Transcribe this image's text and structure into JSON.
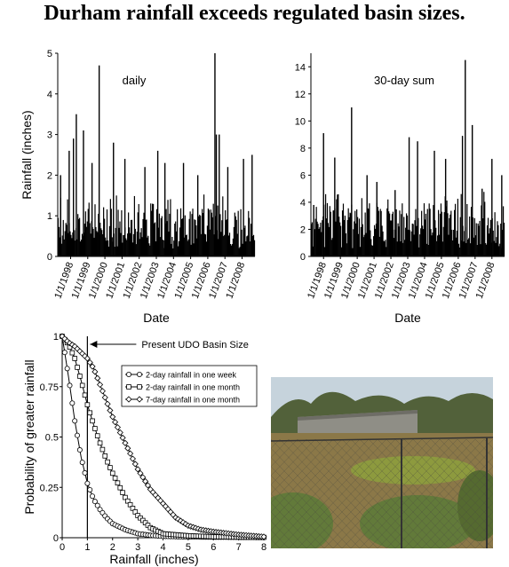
{
  "title": "Durham rainfall exceeds regulated basin sizes.",
  "chart_data": [
    {
      "type": "bar",
      "annotation": "daily",
      "xlabel": "Date",
      "ylabel": "Rainfall (inches)",
      "ylim": [
        0,
        5
      ],
      "yticks": [
        0,
        1,
        2,
        3,
        4,
        5
      ],
      "xtick_labels": [
        "1/1/1998",
        "1/1/1999",
        "1/1/2000",
        "1/1/2001",
        "1/1/2002",
        "1/1/2003",
        "1/1/2004",
        "1/1/2005",
        "1/1/2006",
        "1/1/2007",
        "1/1/2008"
      ],
      "x_range": [
        "1997-04-01",
        "2008-10-01"
      ],
      "peaks": [
        {
          "date": "1997-06",
          "value": 2.0
        },
        {
          "date": "1997-12",
          "value": 2.6
        },
        {
          "date": "1998-03",
          "value": 2.9
        },
        {
          "date": "1998-05",
          "value": 3.5
        },
        {
          "date": "1998-10",
          "value": 3.1
        },
        {
          "date": "1999-04",
          "value": 2.3
        },
        {
          "date": "1999-09",
          "value": 4.7
        },
        {
          "date": "2000-07",
          "value": 2.8
        },
        {
          "date": "2001-03",
          "value": 2.4
        },
        {
          "date": "2002-05",
          "value": 2.2
        },
        {
          "date": "2003-02",
          "value": 2.6
        },
        {
          "date": "2003-07",
          "value": 2.3
        },
        {
          "date": "2004-08",
          "value": 2.3
        },
        {
          "date": "2005-06",
          "value": 2.0
        },
        {
          "date": "2006-06",
          "value": 5.0
        },
        {
          "date": "2006-07",
          "value": 3.0
        },
        {
          "date": "2006-09",
          "value": 3.0
        },
        {
          "date": "2007-03",
          "value": 2.2
        },
        {
          "date": "2008-02",
          "value": 2.4
        },
        {
          "date": "2008-08",
          "value": 2.5
        }
      ],
      "baseline_max": 1.3,
      "series_color": "#000000"
    },
    {
      "type": "bar",
      "annotation": "30-day sum",
      "xlabel": "Date",
      "ylabel": "",
      "ylim": [
        0,
        15
      ],
      "yticks": [
        0,
        2,
        4,
        6,
        8,
        10,
        12,
        14
      ],
      "xtick_labels": [
        "1/1/1998",
        "1/1/1999",
        "1/1/2000",
        "1/1/2001",
        "1/1/2002",
        "1/1/2003",
        "1/1/2004",
        "1/1/2005",
        "1/1/2006",
        "1/1/2007",
        "1/1/2008"
      ],
      "x_range": [
        "1997-04-01",
        "2008-10-01"
      ],
      "peaks": [
        {
          "date": "1997-06",
          "value": 3.8
        },
        {
          "date": "1998-01",
          "value": 9.1
        },
        {
          "date": "1998-09",
          "value": 7.3
        },
        {
          "date": "1999-09",
          "value": 11.0
        },
        {
          "date": "2000-08",
          "value": 6.0
        },
        {
          "date": "2001-03",
          "value": 5.5
        },
        {
          "date": "2002-04",
          "value": 4.9
        },
        {
          "date": "2003-02",
          "value": 8.8
        },
        {
          "date": "2003-08",
          "value": 8.5
        },
        {
          "date": "2004-08",
          "value": 7.8
        },
        {
          "date": "2005-04",
          "value": 7.2
        },
        {
          "date": "2006-04",
          "value": 8.9
        },
        {
          "date": "2006-06",
          "value": 14.5
        },
        {
          "date": "2006-11",
          "value": 9.7
        },
        {
          "date": "2007-06",
          "value": 5.0
        },
        {
          "date": "2008-01",
          "value": 7.2
        },
        {
          "date": "2008-08",
          "value": 6.0
        }
      ],
      "baseline_max": 4.0,
      "series_color": "#000000"
    },
    {
      "type": "line",
      "xlabel": "Rainfall (inches)",
      "ylabel": "Probability of greater rainfall",
      "xlim": [
        0,
        8
      ],
      "ylim": [
        0,
        1
      ],
      "xticks": [
        0,
        1,
        2,
        3,
        4,
        5,
        6,
        7,
        8
      ],
      "yticks": [
        0,
        0.25,
        0.5,
        0.75,
        1
      ],
      "ytick_labels": [
        "0",
        "0.25",
        "0.5",
        "0.75",
        "1"
      ],
      "annotation": "Present UDO Basin Size",
      "reference_x": 1,
      "legend_position": "upper-right",
      "series": [
        {
          "name": "2-day rainfall in one week",
          "marker": "circle",
          "x": [
            0,
            0.25,
            0.5,
            0.75,
            1,
            1.25,
            1.5,
            1.75,
            2,
            2.5,
            3,
            3.5,
            4,
            5,
            6,
            7,
            8
          ],
          "y": [
            1.0,
            0.8,
            0.58,
            0.4,
            0.27,
            0.19,
            0.14,
            0.1,
            0.07,
            0.04,
            0.02,
            0.012,
            0.007,
            0.004,
            0.003,
            0.002,
            0.001
          ]
        },
        {
          "name": "2-day rainfall in one month",
          "marker": "square",
          "x": [
            0,
            0.25,
            0.5,
            0.75,
            1,
            1.25,
            1.5,
            1.75,
            2,
            2.5,
            3,
            3.5,
            4,
            5,
            6,
            7,
            8
          ],
          "y": [
            1.0,
            0.96,
            0.89,
            0.78,
            0.66,
            0.56,
            0.47,
            0.39,
            0.32,
            0.2,
            0.11,
            0.05,
            0.02,
            0.01,
            0.005,
            0.003,
            0.002
          ]
        },
        {
          "name": "7-day rainfall in one month",
          "marker": "diamond",
          "x": [
            0,
            0.25,
            0.5,
            0.75,
            1,
            1.25,
            1.5,
            1.75,
            2,
            2.5,
            3,
            3.5,
            4,
            4.5,
            5,
            5.5,
            6,
            7,
            8
          ],
          "y": [
            1.0,
            0.97,
            0.95,
            0.92,
            0.89,
            0.84,
            0.76,
            0.68,
            0.6,
            0.47,
            0.34,
            0.24,
            0.17,
            0.1,
            0.06,
            0.04,
            0.03,
            0.015,
            0.005
          ]
        }
      ]
    }
  ],
  "photo": {
    "sky_color": "#c6d3dc",
    "tree_color": "#52613a",
    "building_color": "#8f8e86",
    "grass_color": "#8b7848",
    "pond_color": "#8d9a3e",
    "shrub_color": "#627a3a",
    "fence_color": "#4a4a40"
  }
}
